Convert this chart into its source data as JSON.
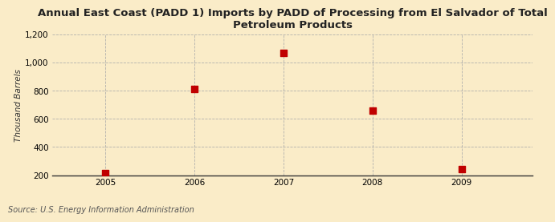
{
  "title": "Annual East Coast (PADD 1) Imports by PADD of Processing from El Salvador of Total\nPetroleum Products",
  "ylabel": "Thousand Barrels",
  "source": "Source: U.S. Energy Information Administration",
  "years": [
    2005,
    2006,
    2007,
    2008,
    2009
  ],
  "values": [
    216,
    813,
    1071,
    660,
    242
  ],
  "xlim": [
    2004.4,
    2009.8
  ],
  "ylim": [
    200,
    1200
  ],
  "yticks": [
    200,
    400,
    600,
    800,
    1000,
    1200
  ],
  "ytick_labels": [
    "200",
    "400",
    "600",
    "800",
    "1,000",
    "1,200"
  ],
  "xticks": [
    2005,
    2006,
    2007,
    2008,
    2009
  ],
  "marker_color": "#c00000",
  "marker_size": 36,
  "background_color": "#faecc8",
  "grid_color": "#aaaaaa",
  "title_fontsize": 9.5,
  "axis_label_fontsize": 7.5,
  "tick_fontsize": 7.5,
  "source_fontsize": 7
}
